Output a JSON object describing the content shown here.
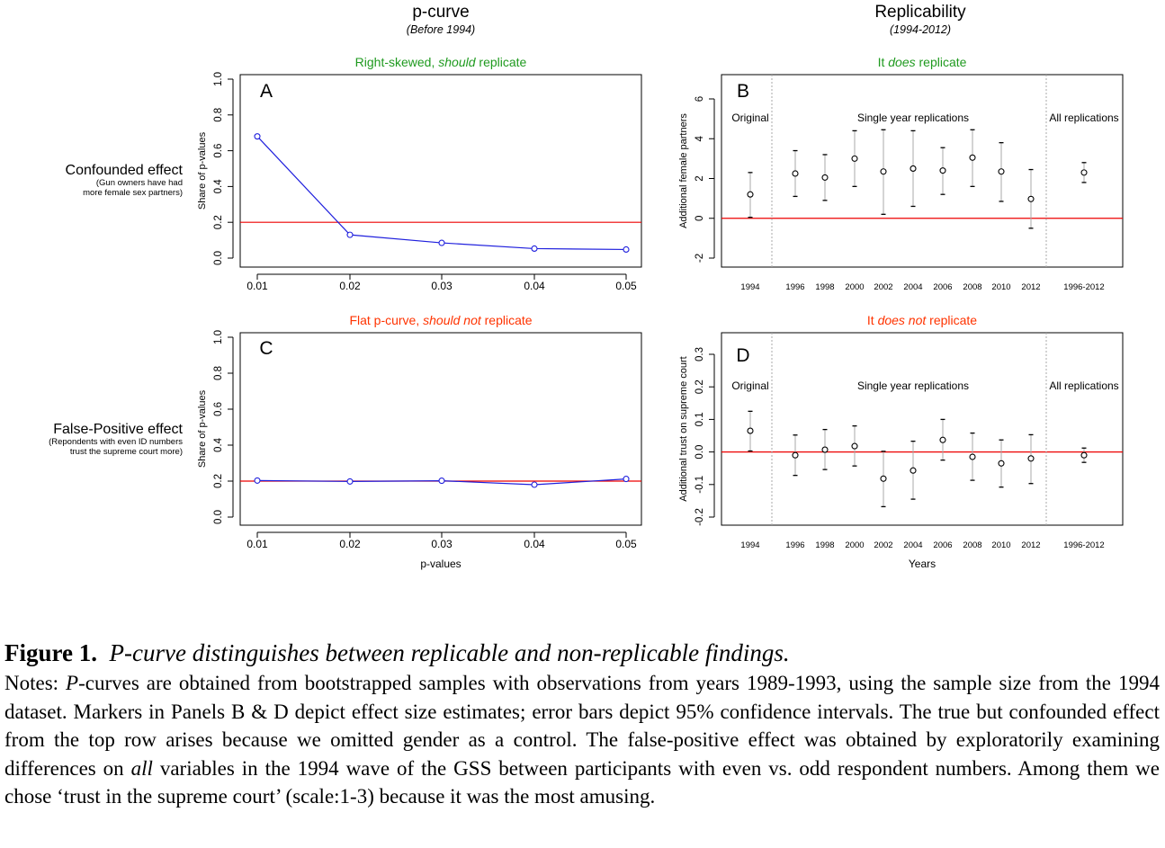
{
  "column_titles": {
    "left": {
      "title": "p-curve",
      "subtitle": "(Before 1994)"
    },
    "right": {
      "title": "Replicability",
      "subtitle": "(1994-2012)"
    }
  },
  "row_labels": [
    {
      "title": "Confounded effect",
      "lines": [
        "(Gun owners have had",
        "more female sex partners)"
      ]
    },
    {
      "title": "False-Positive effect",
      "lines": [
        "(Repondents with even ID numbers",
        "trust the supreme court more)"
      ]
    }
  ],
  "colors": {
    "red": "#ee0000",
    "blue": "#1f1fdd",
    "green": "#1f9a1f",
    "orange_red": "#ff3300",
    "black": "#000000",
    "gray": "#aaaaaa"
  },
  "chart_data": [
    {
      "panel": "A",
      "type": "line",
      "heading": {
        "pre": "Right-skewed, ",
        "em": "should",
        "post": " replicate",
        "color": "#1f9a1f"
      },
      "x": [
        0.01,
        0.02,
        0.03,
        0.04,
        0.05
      ],
      "x_ticks": [
        "0.01",
        "0.02",
        "0.03",
        "0.04",
        "0.05"
      ],
      "values": [
        0.68,
        0.13,
        0.085,
        0.053,
        0.048
      ],
      "ylabel": "Share of p-values",
      "xlabel": "",
      "ylim": [
        0,
        1
      ],
      "y_ticks": [
        "0.0",
        "0.2",
        "0.4",
        "0.6",
        "0.8",
        "1.0"
      ],
      "reference_line": 0.2
    },
    {
      "panel": "B",
      "type": "scatter",
      "heading": {
        "pre": "It ",
        "em": "does",
        "post": " replicate",
        "color": "#1f9a1f"
      },
      "categories": [
        "1994",
        "1996",
        "1998",
        "2000",
        "2002",
        "2004",
        "2006",
        "2008",
        "2010",
        "2012",
        "1996-2012"
      ],
      "estimates": [
        1.2,
        2.25,
        2.05,
        3.0,
        2.35,
        2.5,
        2.4,
        3.05,
        2.35,
        0.97,
        2.3
      ],
      "ci_low": [
        0.05,
        1.1,
        0.9,
        1.6,
        0.2,
        0.6,
        1.2,
        1.6,
        0.85,
        -0.5,
        1.8
      ],
      "ci_high": [
        2.3,
        3.4,
        3.2,
        4.4,
        4.45,
        4.4,
        3.55,
        4.45,
        3.8,
        2.45,
        2.8
      ],
      "groups": [
        "Original",
        "Single year replications",
        "All replications"
      ],
      "ylabel": "Additional female partners",
      "xlabel": "",
      "ylim": [
        -2.5,
        7
      ],
      "y_ticks": [
        -2,
        0,
        2,
        4,
        6
      ],
      "reference_line": 0
    },
    {
      "panel": "C",
      "type": "line",
      "heading": {
        "pre": "Flat p-curve, ",
        "em": "should not",
        "post": " replicate",
        "color": "#ff3300"
      },
      "x": [
        0.01,
        0.02,
        0.03,
        0.04,
        0.05
      ],
      "x_ticks": [
        "0.01",
        "0.02",
        "0.03",
        "0.04",
        "0.05"
      ],
      "values": [
        0.203,
        0.198,
        0.202,
        0.18,
        0.212
      ],
      "ylabel": "Share of p-values",
      "xlabel": "p-values",
      "ylim": [
        0,
        1
      ],
      "y_ticks": [
        "0.0",
        "0.2",
        "0.4",
        "0.6",
        "0.8",
        "1.0"
      ],
      "reference_line": 0.2
    },
    {
      "panel": "D",
      "type": "scatter",
      "heading": {
        "pre": "It ",
        "em": "does not",
        "post": " replicate",
        "color": "#ff3300"
      },
      "categories": [
        "1994",
        "1996",
        "1998",
        "2000",
        "2002",
        "2004",
        "2006",
        "2008",
        "2010",
        "2012",
        "1996-2012"
      ],
      "estimates": [
        0.065,
        -0.01,
        0.007,
        0.018,
        -0.082,
        -0.057,
        0.037,
        -0.015,
        -0.035,
        -0.02,
        -0.01
      ],
      "ci_low": [
        0.003,
        -0.072,
        -0.054,
        -0.043,
        -0.168,
        -0.145,
        -0.025,
        -0.087,
        -0.108,
        -0.097,
        -0.032
      ],
      "ci_high": [
        0.125,
        0.052,
        0.069,
        0.08,
        0.002,
        0.033,
        0.1,
        0.058,
        0.037,
        0.053,
        0.012
      ],
      "groups": [
        "Original",
        "Single year replications",
        "All replications"
      ],
      "ylabel": "Additional trust on supreme court",
      "xlabel": "Years",
      "ylim": [
        -0.22,
        0.33
      ],
      "y_ticks": [
        "-0.2",
        "-0.1",
        "0.0",
        "0.1",
        "0.2",
        "0.3"
      ],
      "reference_line": 0
    }
  ],
  "caption": {
    "label": "Figure 1.",
    "title": "P-curve distinguishes between replicable and non-replicable findings.",
    "notes": [
      {
        "t": "Notes: "
      },
      {
        "t": "P",
        "i": true
      },
      {
        "t": "-curves are obtained from bootstrapped samples with observations from years 1989-1993, using the sample size from the 1994 dataset. Markers in Panels B & D depict effect size estimates; error bars depict 95% confidence intervals. The true but confounded effect from the top row arises because we omitted gender as a control. The false-positive effect was obtained by exploratorily examining differences on "
      },
      {
        "t": "all",
        "i": true
      },
      {
        "t": " variables in the 1994 wave of the GSS between participants with even vs. odd respondent numbers. Among them we chose ‘trust in the supreme court’ (scale:1-3) because it was the most amusing."
      }
    ]
  }
}
